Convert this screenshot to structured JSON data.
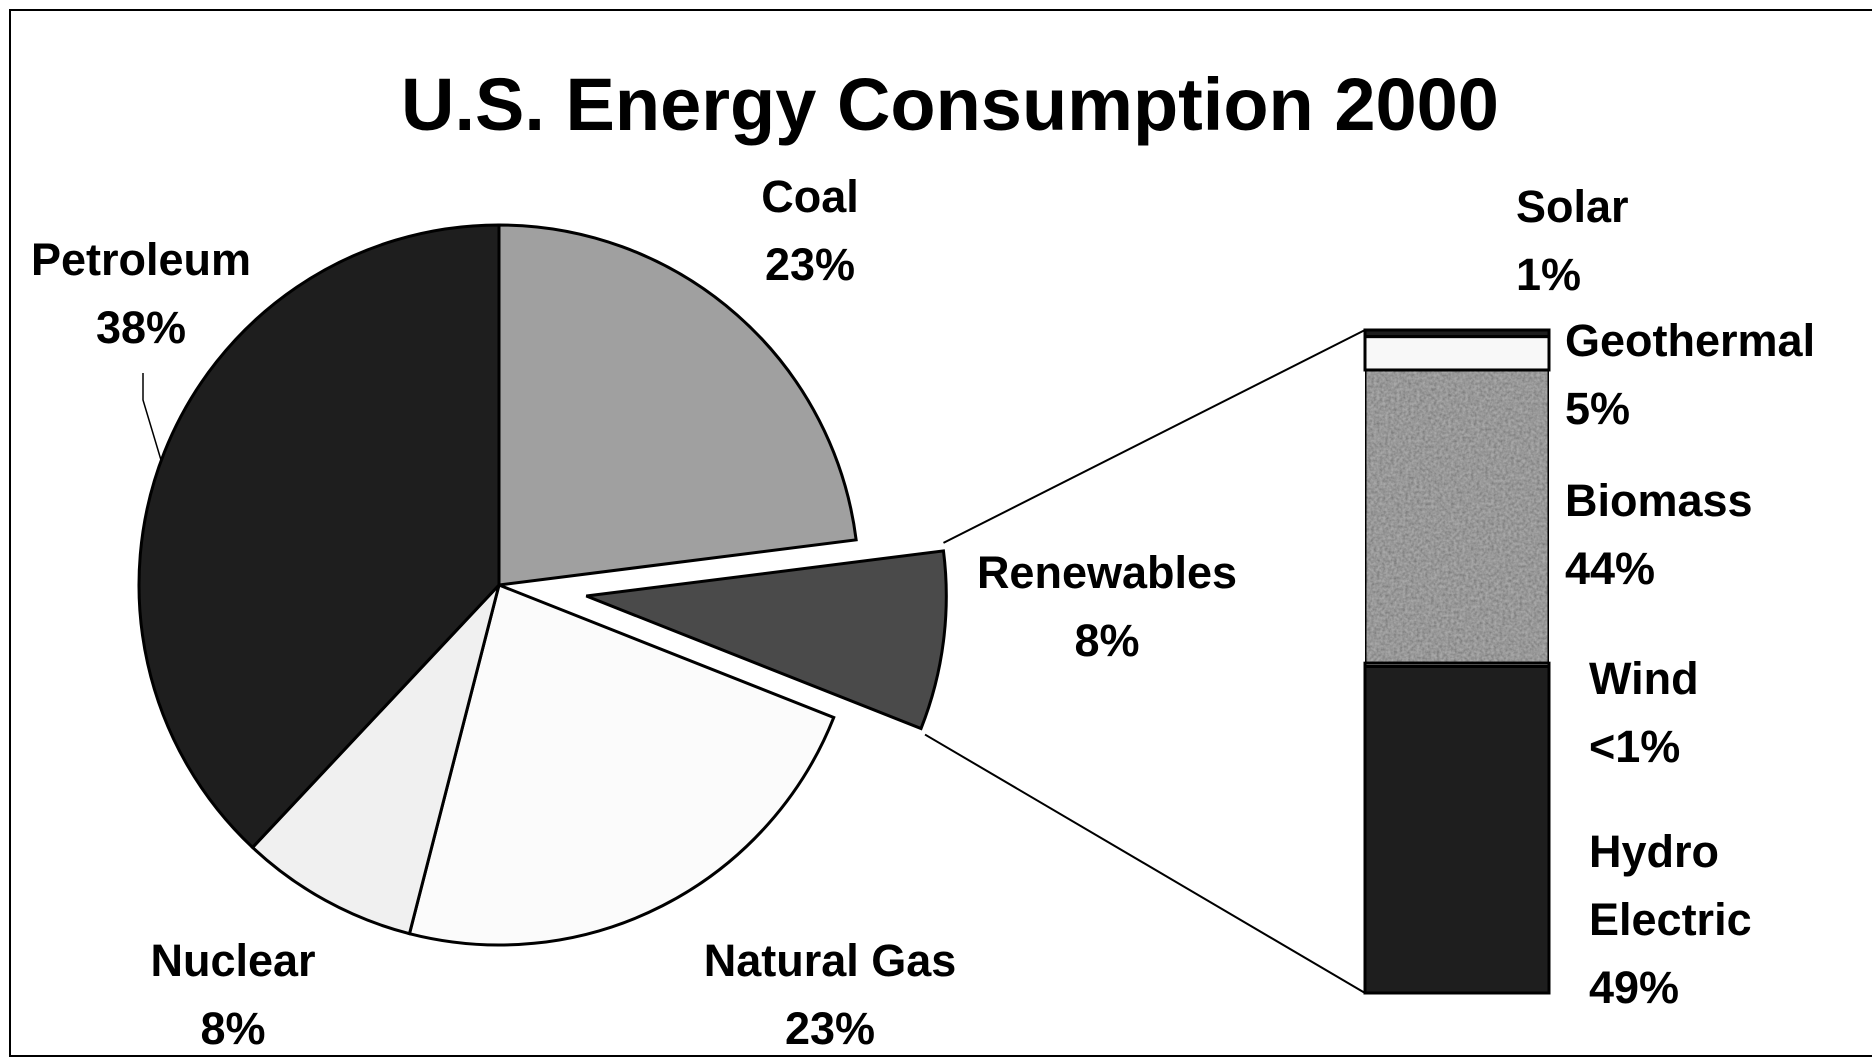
{
  "chart_data": {
    "type": "pie-of-bar",
    "title": "U.S. Energy Consumption 2000",
    "pie": {
      "categories": [
        "Coal",
        "Renewables",
        "Natural Gas",
        "Nuclear",
        "Petroleum"
      ],
      "values": [
        23,
        8,
        23,
        8,
        38
      ],
      "value_labels": [
        "23%",
        "8%",
        "23%",
        "8%",
        "38%"
      ],
      "colors": [
        "#a0a0a0",
        "#4a4a4a",
        "#fbfbfb",
        "#f0f0f0",
        "#1e1e1e"
      ],
      "exploded": "Renewables"
    },
    "bar": {
      "categories": [
        "Solar",
        "Geothermal",
        "Biomass",
        "Wind",
        "Hydro Electric"
      ],
      "values": [
        1,
        5,
        44,
        0.5,
        49
      ],
      "value_labels": [
        "1%",
        "5%",
        "44%",
        "<1%",
        "49%"
      ],
      "colors": [
        "#1e1e1e",
        "#f8f8f8",
        "#a8a8a8",
        "#eeeeee",
        "#1e1e1e"
      ]
    }
  }
}
